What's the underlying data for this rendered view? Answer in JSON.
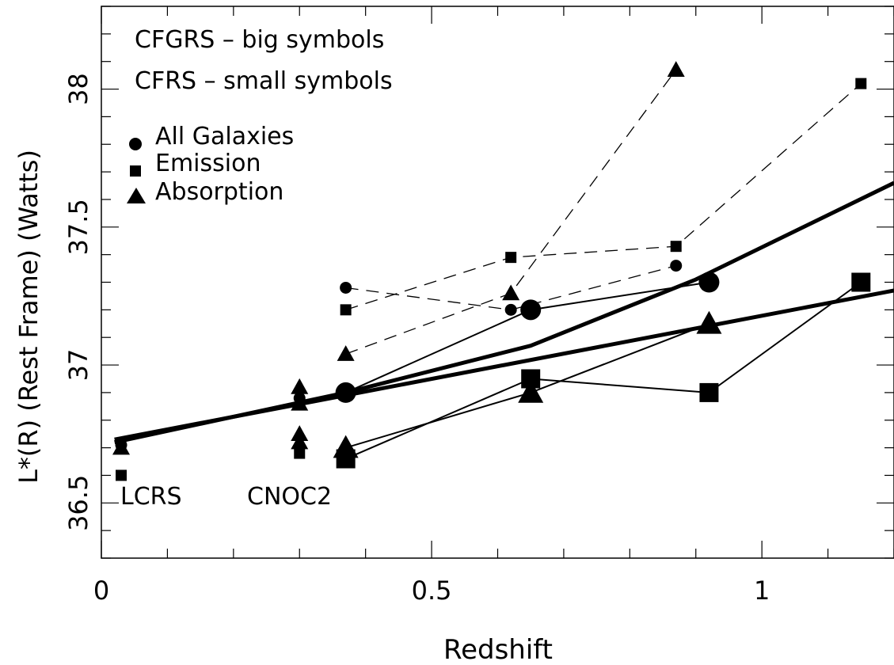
{
  "chart_data": {
    "type": "scatter",
    "xlabel": "Redshift",
    "ylabel": "L*(R) (Rest Frame) (Watts)",
    "xlim": [
      0,
      1.2
    ],
    "ylim": [
      36.3,
      38.3
    ],
    "xticks": [
      0,
      0.5,
      1
    ],
    "yticks": [
      36.5,
      37,
      37.5,
      38
    ],
    "annotations": [
      "CFGRS – big symbols",
      "CFRS – small symbols",
      "LCRS",
      "CNOC2"
    ],
    "legend": {
      "position": "top-left",
      "entries": [
        {
          "label": "All Galaxies",
          "marker": "circle"
        },
        {
          "label": "Emission",
          "marker": "square"
        },
        {
          "label": "Absorption",
          "marker": "triangle"
        }
      ]
    },
    "fit_lines": [
      {
        "x": [
          0.02,
          1.2
        ],
        "y": [
          36.73,
          37.27
        ]
      },
      {
        "x": [
          0.02,
          0.37,
          0.65,
          0.9,
          1.2
        ],
        "y": [
          36.72,
          36.9,
          37.07,
          37.31,
          37.66
        ]
      }
    ],
    "series": [
      {
        "name": "All Galaxies",
        "marker": "circle",
        "size": "big",
        "line": "solid",
        "points": [
          [
            0.37,
            36.9
          ],
          [
            0.65,
            37.2
          ],
          [
            0.92,
            37.3
          ]
        ]
      },
      {
        "name": "Emission",
        "marker": "square",
        "size": "big",
        "line": "solid",
        "points": [
          [
            0.37,
            36.66
          ],
          [
            0.65,
            36.95
          ],
          [
            0.92,
            36.9
          ],
          [
            1.15,
            37.3
          ]
        ]
      },
      {
        "name": "Absorption",
        "marker": "triangle",
        "size": "big",
        "line": "solid",
        "points": [
          [
            0.37,
            36.7
          ],
          [
            0.65,
            36.9
          ],
          [
            0.92,
            37.15
          ]
        ]
      },
      {
        "name": "All Galaxies",
        "marker": "circle",
        "size": "small",
        "line": "dashed",
        "points": [
          [
            0.37,
            37.28
          ],
          [
            0.62,
            37.2
          ],
          [
            0.87,
            37.36
          ]
        ]
      },
      {
        "name": "Emission",
        "marker": "square",
        "size": "small",
        "line": "dashed",
        "points": [
          [
            0.37,
            37.2
          ],
          [
            0.62,
            37.39
          ],
          [
            0.87,
            37.43
          ],
          [
            1.15,
            38.02
          ]
        ]
      },
      {
        "name": "Absorption",
        "marker": "triangle",
        "size": "small",
        "line": "dashed",
        "points": [
          [
            0.37,
            37.04
          ],
          [
            0.62,
            37.26
          ],
          [
            0.87,
            38.07
          ]
        ]
      },
      {
        "name": "LCRS",
        "marker": "circle",
        "size": "small",
        "line": "none",
        "points": [
          [
            0.03,
            36.71
          ]
        ]
      },
      {
        "name": "LCRS",
        "marker": "square",
        "size": "small",
        "line": "none",
        "points": [
          [
            0.03,
            36.6
          ]
        ]
      },
      {
        "name": "LCRS",
        "marker": "triangle",
        "size": "small",
        "line": "none",
        "points": [
          [
            0.03,
            36.7
          ]
        ]
      },
      {
        "name": "CNOC2",
        "marker": "circle",
        "size": "small",
        "line": "none",
        "points": [
          [
            0.3,
            36.88
          ]
        ]
      },
      {
        "name": "CNOC2",
        "marker": "square",
        "size": "small",
        "line": "none",
        "points": [
          [
            0.3,
            36.68
          ]
        ]
      },
      {
        "name": "CNOC2",
        "marker": "triangle",
        "size": "small",
        "line": "none",
        "points": [
          [
            0.3,
            36.92
          ],
          [
            0.3,
            36.86
          ],
          [
            0.3,
            36.75
          ],
          [
            0.3,
            36.72
          ]
        ]
      }
    ]
  }
}
